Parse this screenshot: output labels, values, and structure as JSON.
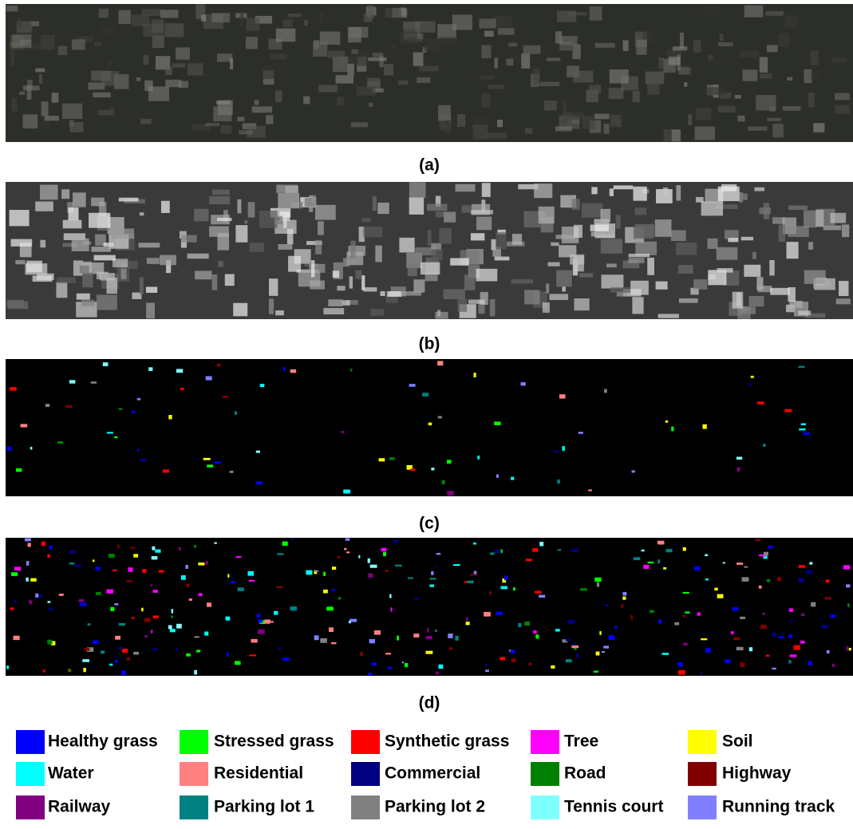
{
  "panels": [
    {
      "label": "(a)"
    },
    {
      "label": "(b)"
    },
    {
      "label": "(c)"
    },
    {
      "label": "(d)"
    }
  ],
  "legend": [
    {
      "name": "Healthy grass",
      "color": "#0000ff"
    },
    {
      "name": "Stressed grass",
      "color": "#00ff00"
    },
    {
      "name": "Synthetic grass",
      "color": "#ff0000"
    },
    {
      "name": "Tree",
      "color": "#ff00ff"
    },
    {
      "name": "Soil",
      "color": "#ffff00"
    },
    {
      "name": "Water",
      "color": "#00ffff"
    },
    {
      "name": "Residential",
      "color": "#ff8080"
    },
    {
      "name": "Commercial",
      "color": "#000080"
    },
    {
      "name": "Road",
      "color": "#008000"
    },
    {
      "name": "Highway",
      "color": "#800000"
    },
    {
      "name": "Railway",
      "color": "#800080"
    },
    {
      "name": "Parking lot 1",
      "color": "#008080"
    },
    {
      "name": "Parking lot 2",
      "color": "#808080"
    },
    {
      "name": "Tennis court",
      "color": "#80ffff"
    },
    {
      "name": "Running track",
      "color": "#8080ff"
    }
  ]
}
